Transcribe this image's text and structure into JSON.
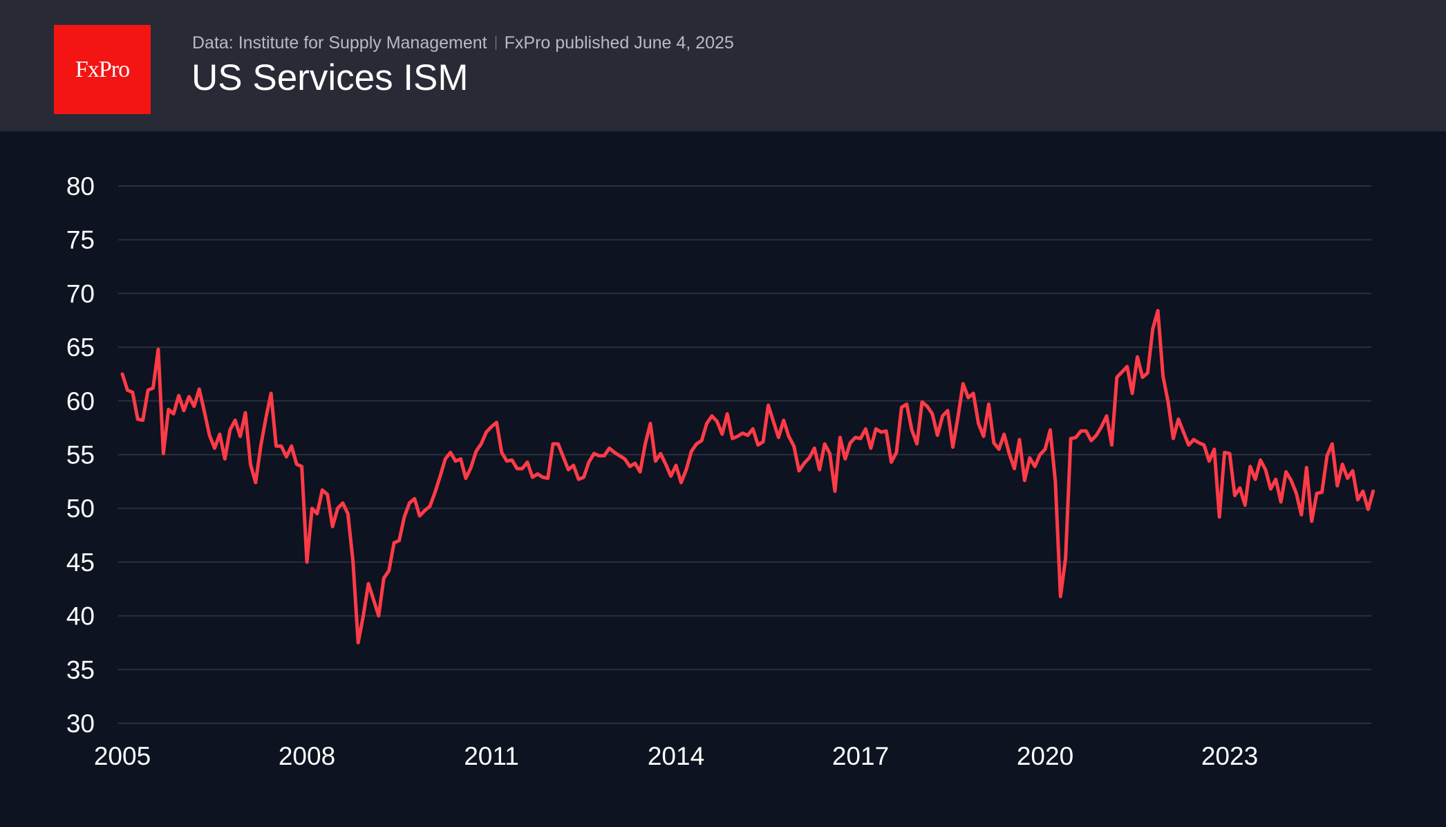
{
  "header": {
    "logo_text": "FxPro",
    "source": "Data: Institute for Supply Management",
    "published": "FxPro published June 4, 2025",
    "title": "US Services ISM"
  },
  "chart_data": {
    "type": "line",
    "title": "US Services ISM",
    "xlabel": "",
    "ylabel": "",
    "ylim": [
      30,
      80
    ],
    "y_ticks": [
      "80",
      "75",
      "70",
      "65",
      "60",
      "55",
      "50",
      "45",
      "40",
      "35",
      "30"
    ],
    "x_ticks": [
      "2005",
      "2008",
      "2011",
      "2014",
      "2017",
      "2020",
      "2023"
    ],
    "x_range": [
      "2005-01",
      "2025-05"
    ],
    "frequency": "monthly",
    "grid": "horizontal",
    "line_color": "#ff3b47",
    "series": [
      {
        "values": [
          62.5,
          61.0,
          60.8,
          58.3,
          58.2,
          61.0,
          61.2,
          64.8,
          55.1,
          59.2,
          58.8,
          60.5,
          59.1,
          60.4,
          59.5,
          61.1,
          59.0,
          56.8,
          55.6,
          56.9,
          54.6,
          57.3,
          58.2,
          56.7,
          58.9,
          54.1,
          52.4,
          55.8,
          58.4,
          60.7,
          55.8,
          55.8,
          54.8,
          55.8,
          54.1,
          53.9,
          45.0,
          50.0,
          49.5,
          51.7,
          51.3,
          48.3,
          50.0,
          50.5,
          49.5,
          45.0,
          37.5,
          40.0,
          43.0,
          41.5,
          40.0,
          43.5,
          44.2,
          46.8,
          47.0,
          49.2,
          50.5,
          50.9,
          49.3,
          49.8,
          50.2,
          51.5,
          53.0,
          54.6,
          55.2,
          54.4,
          54.6,
          52.8,
          53.8,
          55.3,
          56.0,
          57.1,
          57.6,
          58.0,
          55.2,
          54.4,
          54.5,
          53.7,
          53.7,
          54.3,
          52.9,
          53.2,
          52.9,
          52.8,
          56.0,
          56.0,
          54.8,
          53.6,
          54.0,
          52.7,
          52.9,
          54.3,
          55.1,
          54.9,
          54.9,
          55.6,
          55.2,
          54.9,
          54.6,
          53.9,
          54.2,
          53.4,
          56.0,
          57.9,
          54.4,
          55.1,
          54.1,
          53.0,
          54.0,
          52.4,
          53.6,
          55.3,
          56.0,
          56.3,
          57.9,
          58.6,
          58.1,
          56.9,
          58.8,
          56.5,
          56.7,
          57.0,
          56.8,
          57.4,
          55.9,
          56.2,
          59.6,
          58.1,
          56.6,
          58.2,
          56.7,
          55.8,
          53.5,
          54.2,
          54.7,
          55.6,
          53.6,
          56.0,
          55.1,
          51.6,
          56.6,
          54.6,
          56.1,
          56.6,
          56.5,
          57.4,
          55.6,
          57.4,
          57.1,
          57.2,
          54.3,
          55.2,
          59.4,
          59.7,
          57.3,
          56.0,
          59.9,
          59.5,
          58.8,
          56.8,
          58.6,
          59.1,
          55.7,
          58.5,
          61.6,
          60.3,
          60.7,
          57.9,
          56.7,
          59.7,
          56.1,
          55.5,
          56.9,
          55.1,
          53.7,
          56.4,
          52.6,
          54.7,
          53.9,
          55.0,
          55.5,
          57.3,
          52.5,
          41.8,
          45.4,
          56.5,
          56.6,
          57.2,
          57.2,
          56.3,
          56.8,
          57.6,
          58.6,
          55.9,
          62.2,
          62.7,
          63.2,
          60.7,
          64.1,
          62.2,
          62.6,
          66.7,
          68.4,
          62.3,
          59.9,
          56.5,
          58.3,
          57.1,
          55.9,
          56.4,
          56.1,
          55.9,
          54.4,
          55.5,
          49.2,
          55.2,
          55.1,
          51.2,
          51.9,
          50.3,
          53.9,
          52.7,
          54.5,
          53.6,
          51.8,
          52.7,
          50.6,
          53.4,
          52.6,
          51.4,
          49.4,
          53.8,
          48.8,
          51.4,
          51.5,
          54.9,
          56.0,
          52.1,
          54.1,
          52.8,
          53.5,
          50.8,
          51.6,
          49.9,
          51.6
        ]
      }
    ]
  }
}
